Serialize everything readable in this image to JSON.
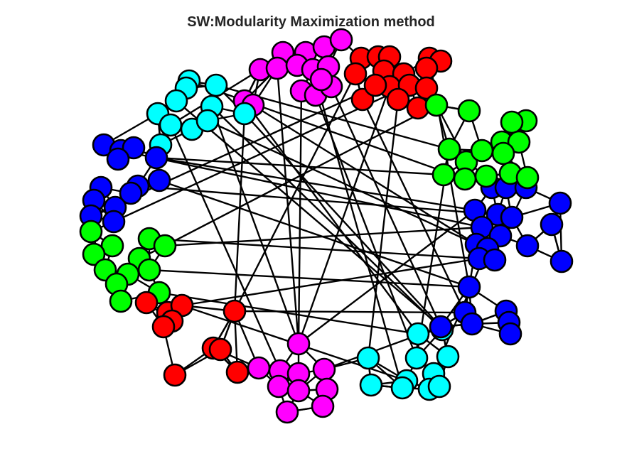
{
  "title": "SW:Modularity Maximization method",
  "colors": {
    "red": "#ff0000",
    "magenta": "#ff00ff",
    "cyan": "#00ffff",
    "green": "#00ff00",
    "blue": "#0000ff",
    "edge": "#000000",
    "node_stroke": "#000000"
  },
  "communities": [
    {
      "name": "red-top",
      "color": "red"
    },
    {
      "name": "magenta-top",
      "color": "magenta"
    },
    {
      "name": "cyan-top",
      "color": "cyan"
    },
    {
      "name": "blue-left",
      "color": "blue"
    },
    {
      "name": "green-left",
      "color": "green"
    },
    {
      "name": "red-bottom",
      "color": "red"
    },
    {
      "name": "magenta-bottom",
      "color": "magenta"
    },
    {
      "name": "cyan-bottom",
      "color": "cyan"
    },
    {
      "name": "blue-right-bottom",
      "color": "blue"
    },
    {
      "name": "blue-right",
      "color": "blue"
    },
    {
      "name": "green-right",
      "color": "green"
    }
  ]
}
